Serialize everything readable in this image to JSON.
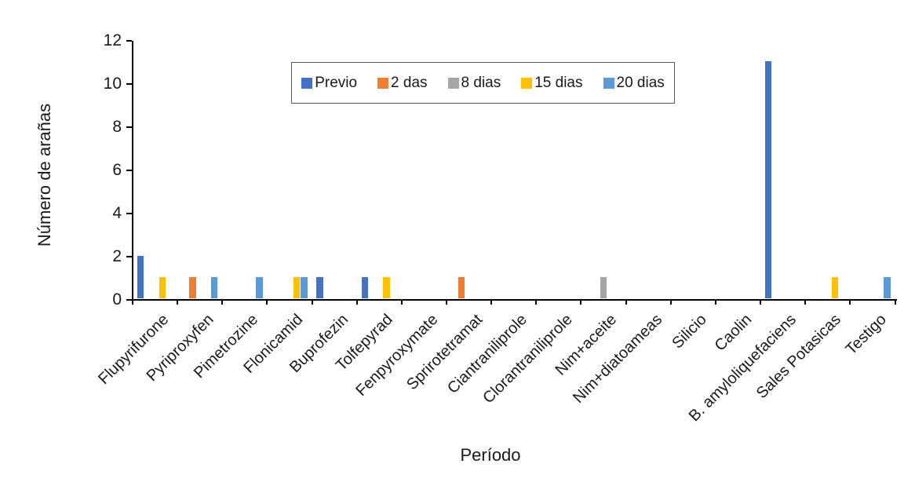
{
  "chart_data": {
    "type": "bar",
    "title": "",
    "xlabel": "Período",
    "ylabel": "Número de arañas",
    "categories": [
      "Flupyrifurone",
      "Pyriproxyfen",
      "Pimetrozine",
      "Flonicamid",
      "Buprofezin",
      "Tolfepyrad",
      "Fenpyroxymate",
      "Sprirotetramat",
      "Ciantraniliprole",
      "Clorantraniliprole",
      "Nim+aceite",
      "Nim+diatoameas",
      "Silicio",
      "Caolin",
      "B. amyloliquefaciens",
      "Sales Potasicas",
      "Testigo"
    ],
    "series": [
      {
        "name": "Previo",
        "color": "#4472C4",
        "values": [
          2,
          0,
          0,
          0,
          1,
          1,
          0,
          0,
          0,
          0,
          0,
          0,
          0,
          0,
          11,
          0,
          0
        ]
      },
      {
        "name": "2 das",
        "color": "#ED7D31",
        "values": [
          0,
          1,
          0,
          0,
          0,
          0,
          0,
          1,
          0,
          0,
          0,
          0,
          0,
          0,
          0,
          0,
          0
        ]
      },
      {
        "name": "8 dias",
        "color": "#A5A5A5",
        "values": [
          0,
          0,
          0,
          0,
          0,
          0,
          0,
          0,
          0,
          0,
          1,
          0,
          0,
          0,
          0,
          0,
          0
        ]
      },
      {
        "name": "15 dias",
        "color": "#FFC000",
        "values": [
          1,
          0,
          0,
          1,
          0,
          1,
          0,
          0,
          0,
          0,
          0,
          0,
          0,
          0,
          0,
          1,
          0
        ]
      },
      {
        "name": "20 dias",
        "color": "#5B9BD5",
        "values": [
          0,
          1,
          1,
          1,
          0,
          0,
          0,
          0,
          0,
          0,
          0,
          0,
          0,
          0,
          0,
          0,
          1
        ]
      }
    ],
    "ylim": [
      0,
      12
    ],
    "yticks": [
      0,
      2,
      4,
      6,
      8,
      10,
      12
    ],
    "grid": false,
    "legend_position": "top-center-inside",
    "axis_color": "#000000",
    "legend_border_color": "#595959"
  }
}
